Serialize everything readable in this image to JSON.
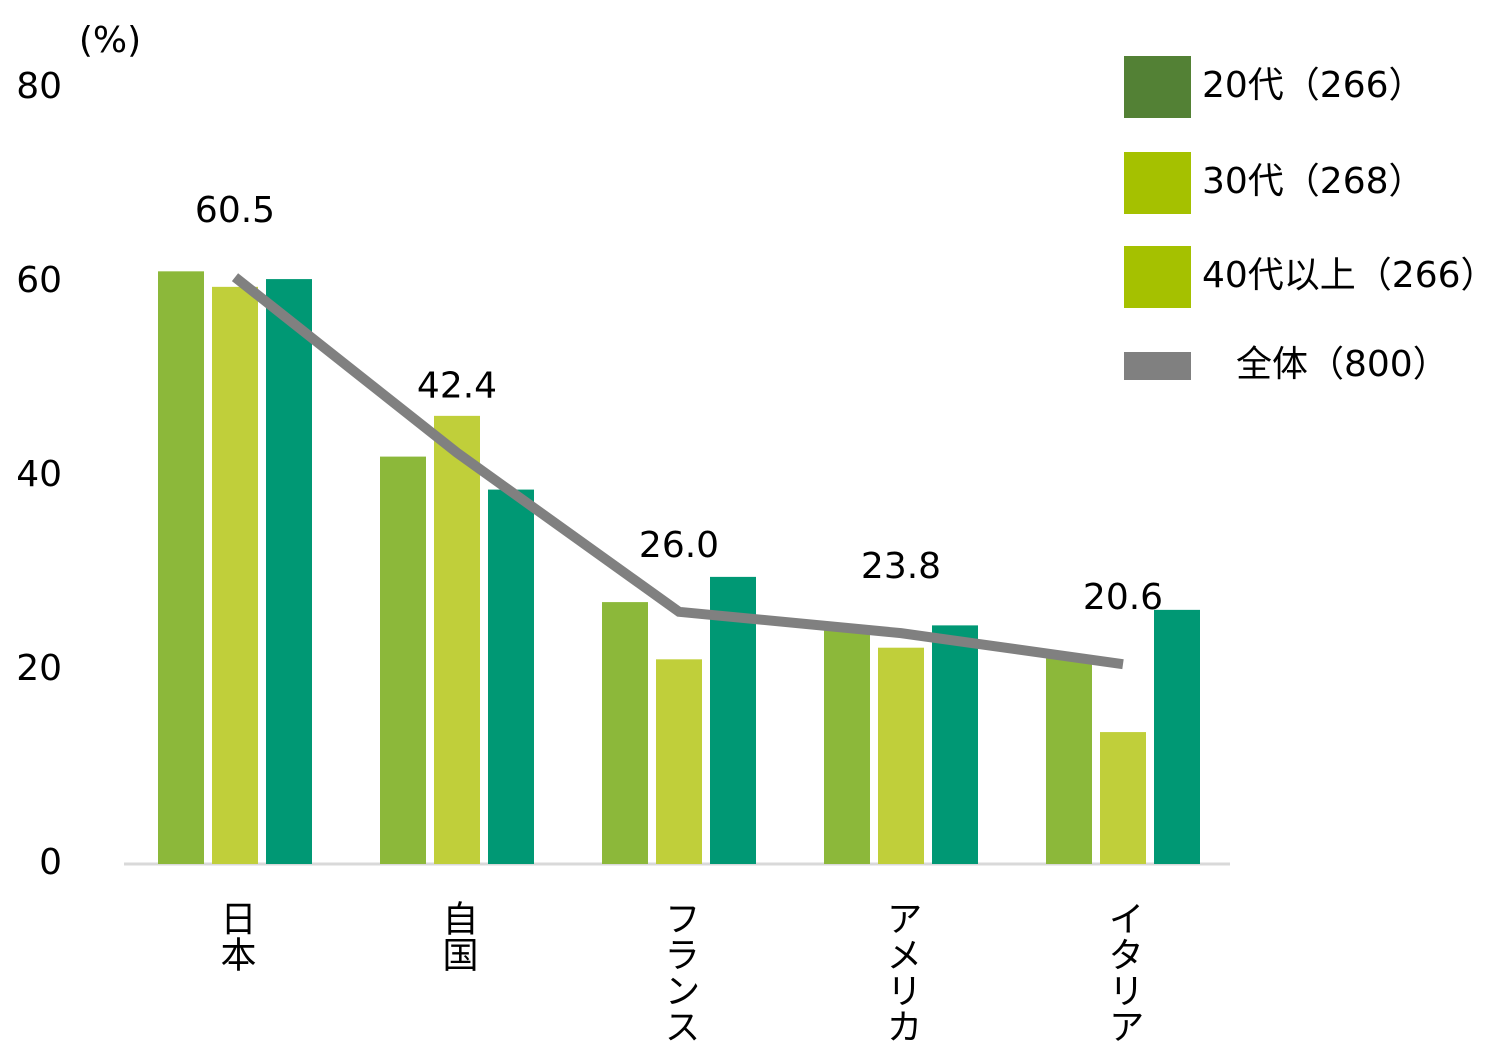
{
  "chart_data": {
    "type": "bar_line",
    "y_axis_label": "(%)",
    "categories": [
      "日本",
      "自国",
      "フランス",
      "アメリカ",
      "イタリア"
    ],
    "ylim": [
      0,
      80
    ],
    "yticks": [
      0,
      20,
      40,
      60,
      80
    ],
    "series": [
      {
        "name": "20代（266）",
        "type": "bar",
        "color": "#8cb83a",
        "legend_color": "#538135",
        "values": [
          61.1,
          42.0,
          27.0,
          24.1,
          21.5
        ]
      },
      {
        "name": "30代（268）",
        "type": "bar",
        "color": "#c0cf3a",
        "legend_color": "#a5c100",
        "values": [
          59.5,
          46.2,
          21.1,
          22.3,
          13.6
        ]
      },
      {
        "name": "40代以上（266）",
        "type": "bar",
        "color": "#009874",
        "legend_color": "#a5c100",
        "values": [
          60.3,
          38.6,
          29.6,
          24.6,
          26.2
        ]
      },
      {
        "name": "全体（800）",
        "type": "line",
        "color": "#808080",
        "legend_color": "#808080",
        "values": [
          60.5,
          42.4,
          26.0,
          23.8,
          20.6
        ],
        "value_labels": [
          "60.5",
          "42.4",
          "26.0",
          "23.8",
          "20.6"
        ]
      }
    ]
  }
}
